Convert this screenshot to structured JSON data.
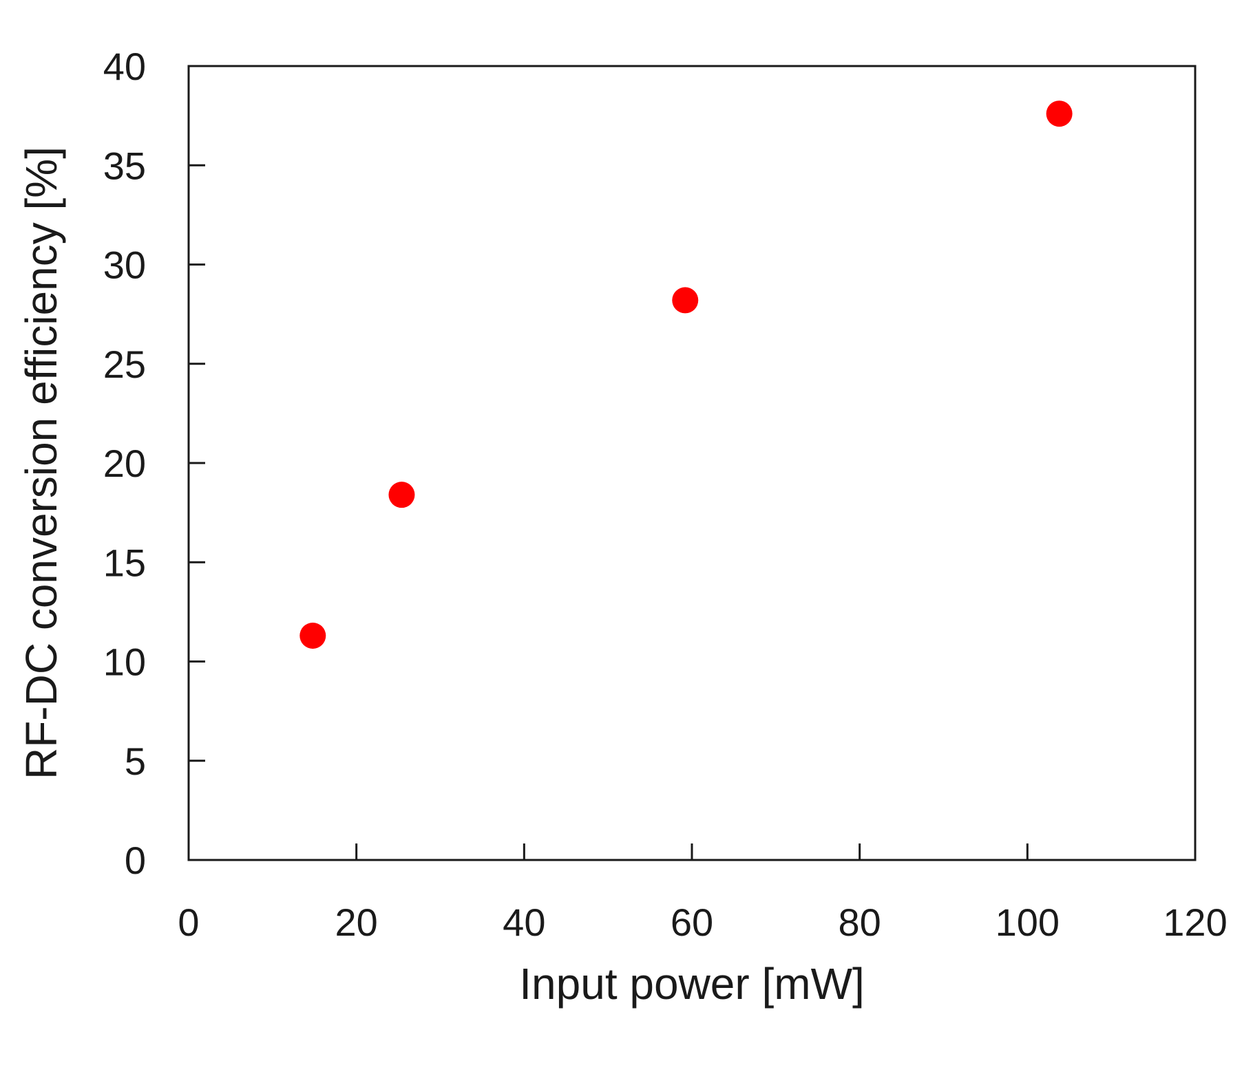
{
  "chart_data": {
    "type": "scatter",
    "title": "",
    "xlabel": "Input power [mW]",
    "ylabel": "RF-DC conversion efficiency [%]",
    "xlim": [
      0,
      120
    ],
    "ylim": [
      0,
      40
    ],
    "xticks": [
      0,
      20,
      40,
      60,
      80,
      100,
      120
    ],
    "yticks": [
      0,
      5,
      10,
      15,
      20,
      25,
      30,
      35,
      40
    ],
    "grid": false,
    "legend": "none",
    "marker_color": "#ff0000",
    "series": [
      {
        "points": [
          {
            "x": 14.8,
            "y": 11.3
          },
          {
            "x": 25.4,
            "y": 18.4
          },
          {
            "x": 59.2,
            "y": 28.2
          },
          {
            "x": 103.8,
            "y": 37.6
          }
        ]
      }
    ]
  }
}
